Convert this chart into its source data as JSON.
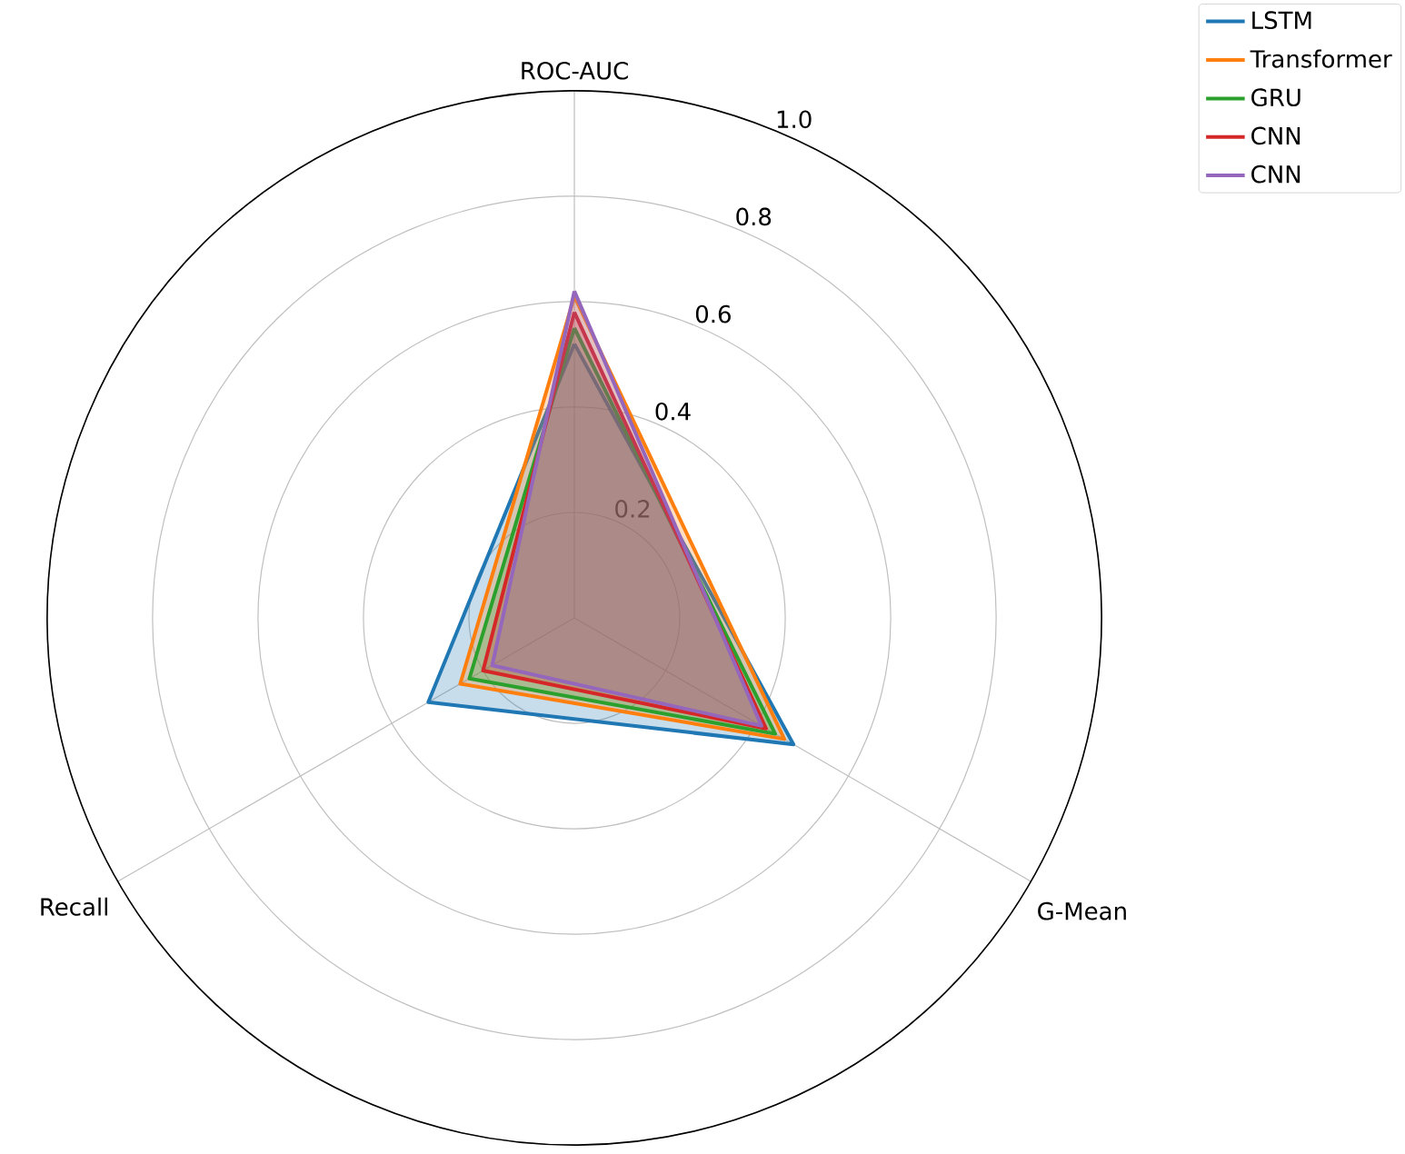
{
  "chart_data": {
    "type": "radar",
    "categories": [
      "ROC-AUC",
      "G-Mean",
      "Recall"
    ],
    "series": [
      {
        "name": "LSTM",
        "color": "#1f77b4",
        "values": [
          0.52,
          0.48,
          0.32
        ]
      },
      {
        "name": "Transformer",
        "color": "#ff7f0e",
        "values": [
          0.61,
          0.46,
          0.25
        ]
      },
      {
        "name": "GRU",
        "color": "#2ca02c",
        "values": [
          0.55,
          0.44,
          0.23
        ]
      },
      {
        "name": "CNN",
        "color": "#d62728",
        "values": [
          0.58,
          0.42,
          0.2
        ]
      },
      {
        "name": "CNN",
        "color": "#9467bd",
        "values": [
          0.62,
          0.41,
          0.18
        ]
      }
    ],
    "ylim": [
      0,
      1
    ],
    "yticks": [
      0.2,
      0.4,
      0.6,
      0.8,
      {
        "value": 1.0,
        "label": "1.0"
      }
    ],
    "grid": true,
    "legend": "top right"
  }
}
